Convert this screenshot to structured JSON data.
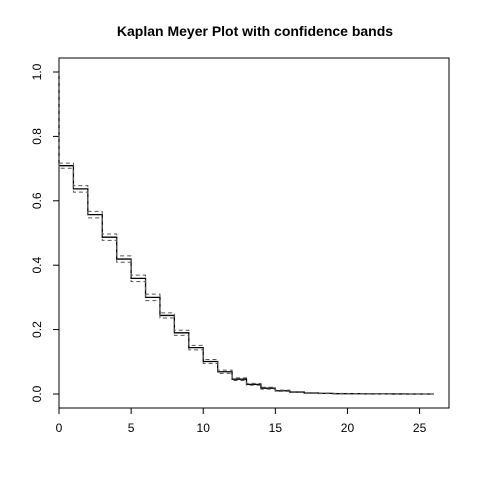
{
  "chart_data": {
    "type": "line",
    "title": "Kaplan Meyer Plot with confidence bands",
    "xlabel": "",
    "ylabel": "",
    "xlim": [
      0,
      26
    ],
    "ylim": [
      0,
      1.0
    ],
    "x_ticks": [
      0,
      5,
      10,
      15,
      20,
      25
    ],
    "y_ticks": [
      0.0,
      0.2,
      0.4,
      0.6,
      0.8,
      1.0
    ],
    "x_tick_labels": [
      "0",
      "5",
      "10",
      "15",
      "20",
      "25"
    ],
    "y_tick_labels": [
      "0.0",
      "0.2",
      "0.4",
      "0.6",
      "0.8",
      "1.0"
    ],
    "grid": false,
    "legend": "none",
    "step_style": "post",
    "x": [
      0,
      1,
      2,
      3,
      4,
      5,
      6,
      7,
      8,
      9,
      10,
      11,
      12,
      13,
      14,
      15,
      16,
      17,
      18,
      19,
      20,
      21,
      22,
      23,
      24,
      25,
      26
    ],
    "series": [
      {
        "role": "estimate",
        "line_style": "solid",
        "color": "#000000",
        "values": [
          0.709,
          0.637,
          0.557,
          0.487,
          0.419,
          0.359,
          0.3,
          0.244,
          0.19,
          0.144,
          0.101,
          0.069,
          0.046,
          0.03,
          0.018,
          0.01,
          0.006,
          0.003,
          0.002,
          0.001,
          0.001,
          0.0005,
          0.0003,
          0.0002,
          0.0001,
          0.0,
          0.0
        ]
      },
      {
        "role": "upper-band",
        "line_style": "dashed",
        "color": "#555555",
        "values": [
          0.717,
          0.647,
          0.567,
          0.497,
          0.429,
          0.369,
          0.31,
          0.252,
          0.198,
          0.151,
          0.107,
          0.074,
          0.05,
          0.033,
          0.021,
          0.012,
          0.007,
          0.004,
          0.003,
          0.002,
          0.0015,
          0.001,
          0.0006,
          0.0004,
          0.0002,
          0.0001,
          0.0001
        ]
      },
      {
        "role": "lower-band",
        "line_style": "dashed",
        "color": "#555555",
        "values": [
          0.701,
          0.627,
          0.547,
          0.477,
          0.409,
          0.349,
          0.29,
          0.236,
          0.182,
          0.137,
          0.095,
          0.064,
          0.042,
          0.027,
          0.015,
          0.008,
          0.005,
          0.002,
          0.001,
          0.0005,
          0.0003,
          0.0002,
          0.0001,
          0.0,
          0.0,
          0.0,
          0.0
        ]
      }
    ]
  }
}
